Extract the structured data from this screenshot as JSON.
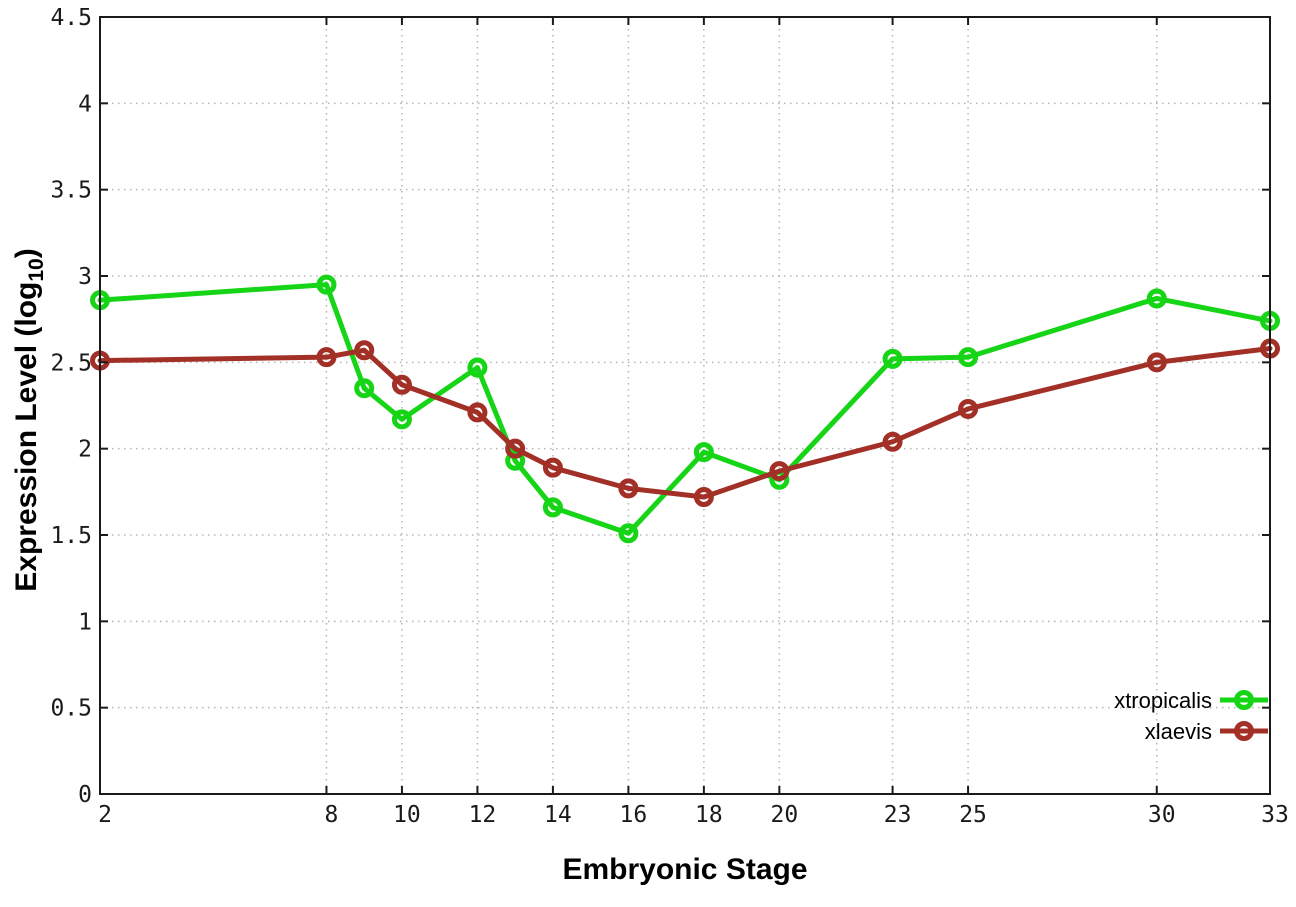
{
  "chart_data": {
    "type": "line",
    "title": "",
    "xlabel": "Embryonic Stage",
    "ylabel": "Expression Level (log10)",
    "ylabel_parts": {
      "pre": "Expression Level (log",
      "sub": "10",
      "post": ")"
    },
    "xlim": [
      2,
      33
    ],
    "ylim": [
      0,
      4.5
    ],
    "x_ticks": {
      "values": [
        2,
        8,
        10,
        12,
        14,
        16,
        18,
        20,
        23,
        25,
        30,
        33
      ],
      "labels": [
        "2",
        "8",
        "10",
        "12",
        "14",
        "16",
        "18",
        "20",
        "23",
        "25",
        "30",
        "33"
      ]
    },
    "y_ticks": {
      "values": [
        0,
        0.5,
        1,
        1.5,
        2,
        2.5,
        3,
        3.5,
        4,
        4.5
      ],
      "labels": [
        "0",
        "0.5",
        "1",
        "1.5",
        "2",
        "2.5",
        "3",
        "3.5",
        "4",
        "4.5"
      ]
    },
    "grid": true,
    "legend_position": "inside-bottom-right",
    "x": [
      2,
      8,
      9,
      10,
      12,
      13,
      14,
      16,
      18,
      20,
      23,
      25,
      30,
      33
    ],
    "series": [
      {
        "name": "xtropicalis",
        "color": "#16d416",
        "marker": "open-circle",
        "values": [
          2.86,
          2.95,
          2.35,
          2.17,
          2.47,
          1.93,
          1.66,
          1.51,
          1.98,
          1.82,
          2.52,
          2.53,
          2.87,
          2.74
        ]
      },
      {
        "name": "xlaevis",
        "color": "#a33027",
        "marker": "open-circle",
        "values": [
          2.51,
          2.53,
          2.57,
          2.37,
          2.21,
          2.0,
          1.89,
          1.77,
          1.72,
          1.87,
          2.04,
          2.23,
          2.5,
          2.58
        ]
      }
    ],
    "colors": {
      "border": "#1a1a1a",
      "grid": "#b5b5b5",
      "tick_text": "#1a1a1a"
    }
  }
}
